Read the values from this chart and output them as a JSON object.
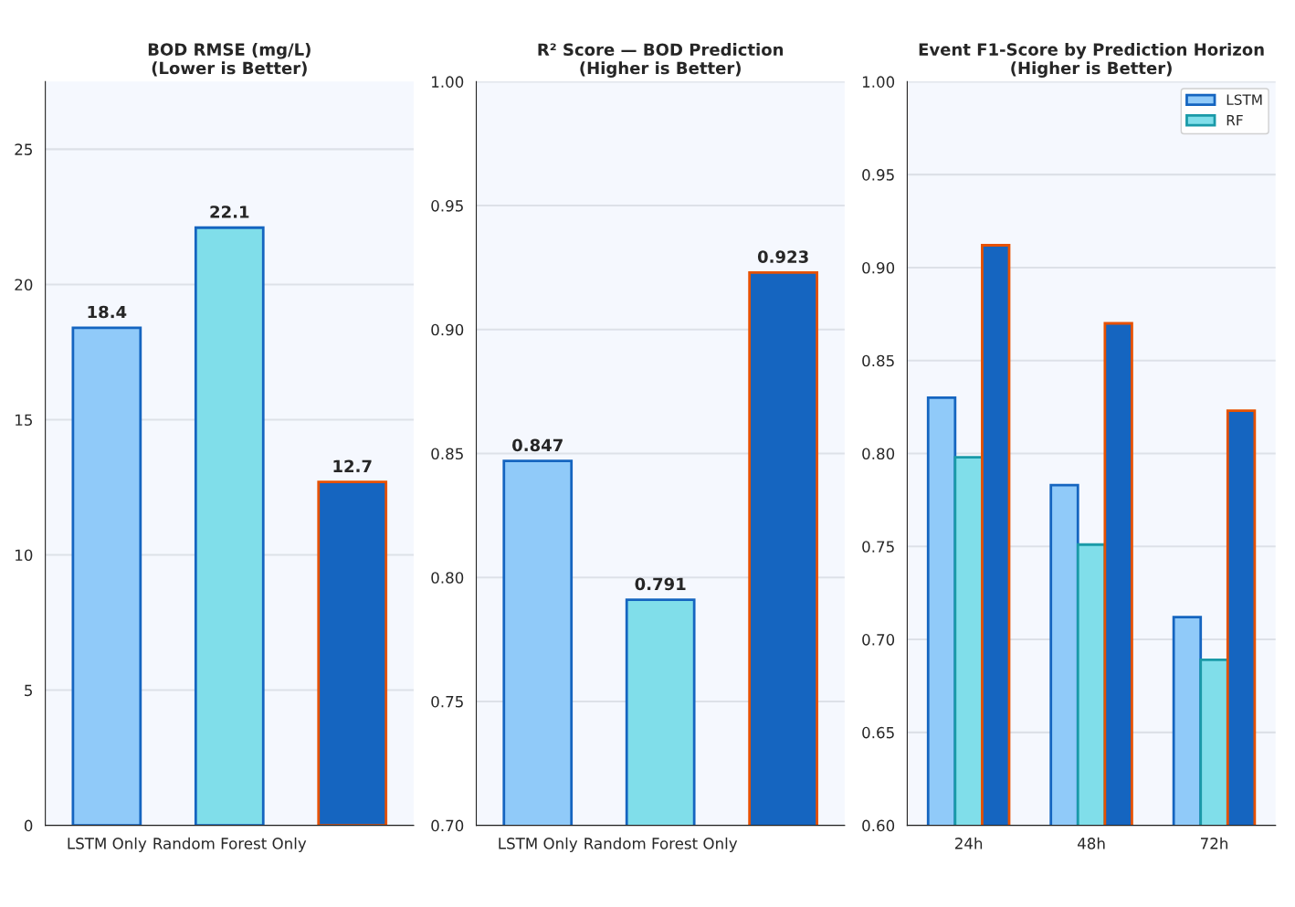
{
  "chart_data": [
    {
      "type": "bar",
      "title": "BOD RMSE (mg/L)\n(Lower is Better)",
      "categories": [
        "LSTM Only",
        "Random Forest Only",
        null
      ],
      "values": [
        18.4,
        22.1,
        12.7
      ],
      "colors": [
        "#90caf9",
        "#80deea",
        "#1565c0"
      ],
      "ylim": [
        0,
        27.5
      ],
      "yticks": [
        0,
        5,
        10,
        15,
        20,
        25
      ],
      "grid": "y",
      "data_labels": true
    },
    {
      "type": "bar",
      "title": "R² Score — BOD Prediction\n(Higher is Better)",
      "categories": [
        "LSTM Only",
        "Random Forest Only",
        null
      ],
      "values": [
        0.847,
        0.791,
        0.923
      ],
      "colors": [
        "#90caf9",
        "#80deea",
        "#1565c0"
      ],
      "ylim": [
        0.7,
        1.0
      ],
      "yticks": [
        {
          "value": 0.7,
          "label": "0.70"
        },
        0.75,
        {
          "value": 0.8,
          "label": "0.80"
        },
        0.85,
        {
          "value": 0.9,
          "label": "0.90"
        },
        0.95,
        {
          "value": 1.0,
          "label": "1.00"
        }
      ],
      "grid": "y",
      "data_labels": true
    },
    {
      "type": "bar",
      "title": "Event F1-Score by Prediction Horizon\n(Higher is Better)",
      "categories": [
        "24h",
        "48h",
        "72h"
      ],
      "series": [
        {
          "name": "LSTM",
          "color": "#90caf9",
          "values": [
            0.83,
            0.783,
            0.712
          ]
        },
        {
          "name": "RF",
          "color": "#80deea",
          "values": [
            0.798,
            0.751,
            0.689
          ]
        },
        {
          "color": "#1565c0",
          "values": [
            0.912,
            0.87,
            0.823
          ]
        }
      ],
      "ylim": [
        0.6,
        1.0
      ],
      "yticks": [
        {
          "value": 0.6,
          "label": "0.60"
        },
        0.65,
        {
          "value": 0.7,
          "label": "0.70"
        },
        0.75,
        {
          "value": 0.8,
          "label": "0.80"
        },
        0.85,
        {
          "value": 0.9,
          "label": "0.90"
        },
        0.95,
        {
          "value": 1.0,
          "label": "1.00"
        }
      ],
      "grid": "y",
      "legend": "top right"
    }
  ]
}
